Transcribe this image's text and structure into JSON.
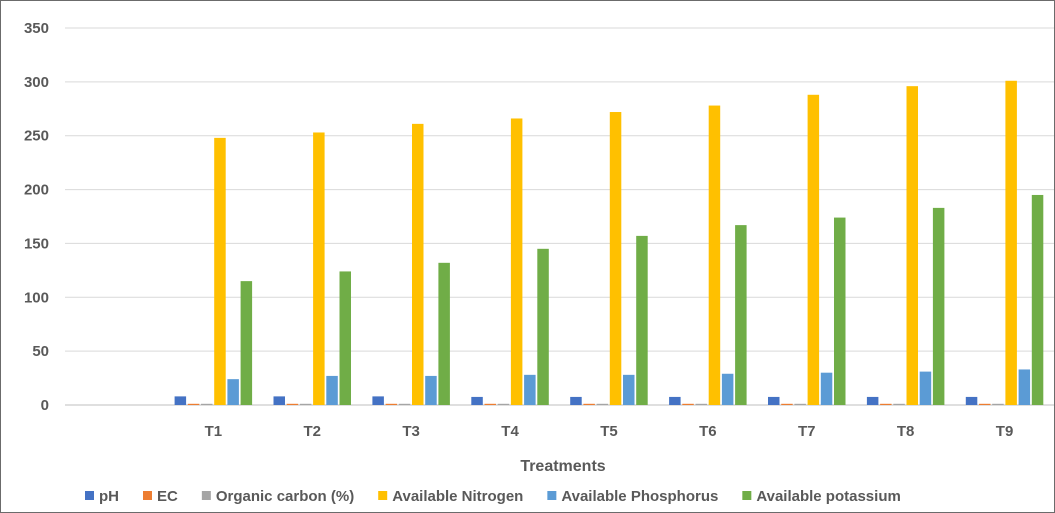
{
  "chart_data": {
    "type": "bar",
    "title": "",
    "xlabel": "Treatments",
    "ylabel": "",
    "ylim": [
      0,
      350
    ],
    "yticks": [
      0,
      50,
      100,
      150,
      200,
      250,
      300,
      350
    ],
    "grid": true,
    "legend_position": "bottom",
    "categories": [
      "",
      "T1",
      "T2",
      "T3",
      "T4",
      "T5",
      "T6",
      "T7",
      "T8",
      "T9"
    ],
    "series": [
      {
        "name": "pH",
        "color": "#4472C4",
        "values": [
          null,
          8,
          8,
          8,
          7.5,
          7.5,
          7.5,
          7.5,
          7.5,
          7.5
        ]
      },
      {
        "name": "EC",
        "color": "#ED7D31",
        "values": [
          null,
          0.4,
          0.4,
          0.4,
          0.4,
          0.4,
          0.4,
          0.4,
          0.4,
          0.4
        ]
      },
      {
        "name": "Organic carbon (%)",
        "color": "#A5A5A5",
        "values": [
          null,
          0.6,
          0.6,
          0.6,
          0.6,
          0.6,
          0.6,
          0.6,
          0.6,
          0.6
        ]
      },
      {
        "name": "Available Nitrogen",
        "color": "#FFC000",
        "values": [
          null,
          248,
          253,
          261,
          266,
          272,
          278,
          288,
          296,
          301
        ]
      },
      {
        "name": "Available Phosphorus",
        "color": "#5B9BD5",
        "values": [
          null,
          24,
          27,
          27,
          28,
          28,
          29,
          30,
          31,
          33
        ]
      },
      {
        "name": "Available potassium",
        "color": "#70AD47",
        "values": [
          null,
          115,
          124,
          132,
          145,
          157,
          167,
          174,
          183,
          195
        ]
      }
    ]
  }
}
